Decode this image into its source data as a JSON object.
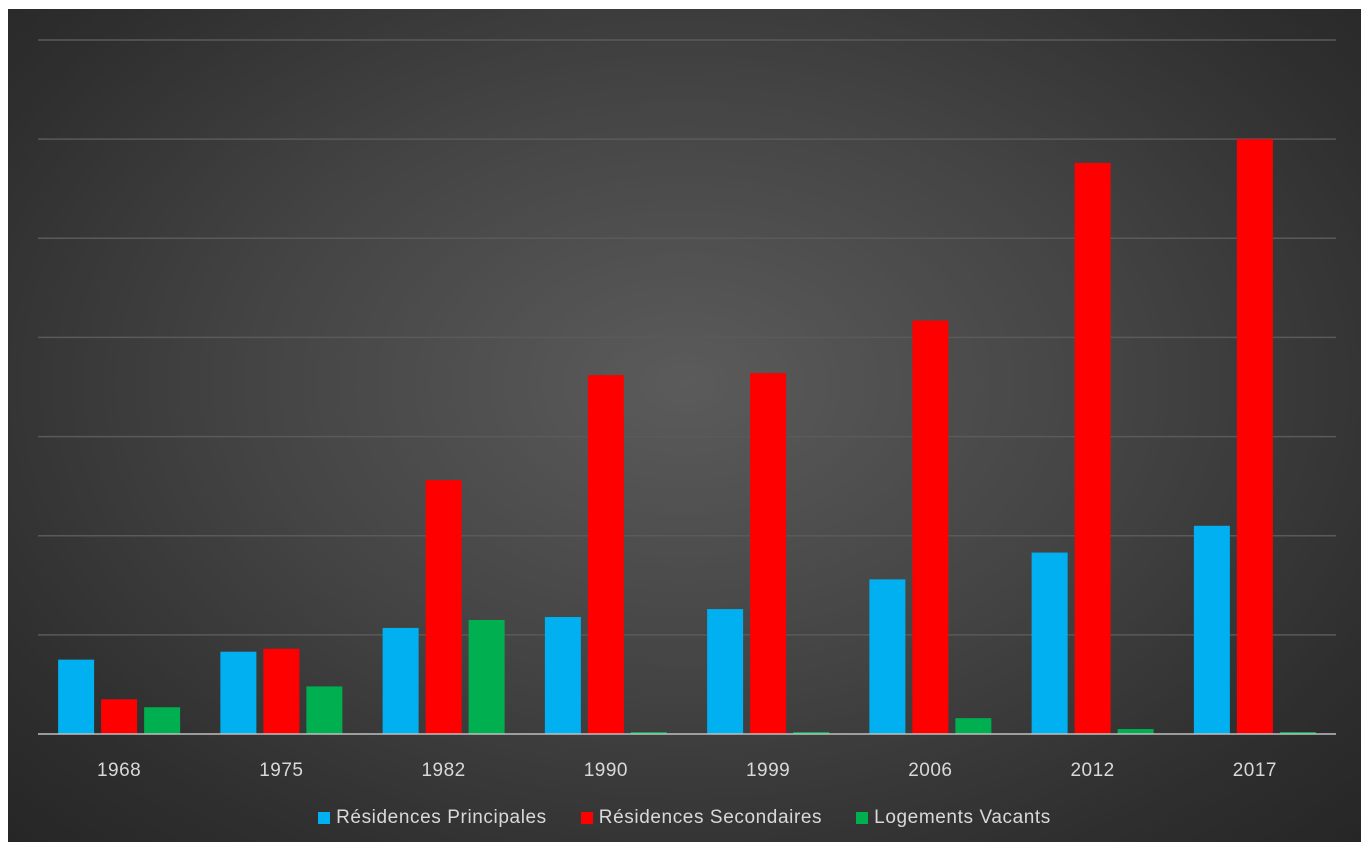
{
  "chart_data": {
    "type": "bar",
    "categories": [
      "1968",
      "1975",
      "1982",
      "1990",
      "1999",
      "2006",
      "2012",
      "2017"
    ],
    "series": [
      {
        "name": "Résidences Principales",
        "color": "#00b0f0",
        "values": [
          75,
          83,
          107,
          118,
          126,
          156,
          183,
          210
        ]
      },
      {
        "name": "Résidences Secondaires",
        "color": "#ff0000",
        "values": [
          35,
          86,
          256,
          362,
          364,
          417,
          576,
          600
        ]
      },
      {
        "name": "Logements Vacants",
        "color": "#00b050",
        "values": [
          27,
          48,
          115,
          2,
          2,
          16,
          5,
          2
        ]
      }
    ],
    "ylim": [
      0,
      700
    ],
    "y_gridline_step": 100,
    "y_tick_labels_shown": false,
    "grid": true,
    "legend_position": "bottom",
    "background": "#404040",
    "gridline_color": "#5a5a5a",
    "axis_color": "#bfbfbf",
    "text_color": "#d9d9d9"
  }
}
